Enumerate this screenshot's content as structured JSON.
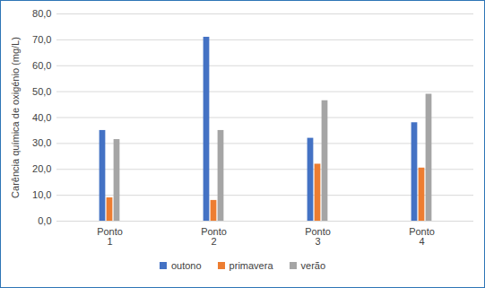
{
  "chart_data": {
    "type": "bar",
    "y_label": "Carência química de oxigénio (mg/L)",
    "categories": [
      "Ponto 1",
      "Ponto 2",
      "Ponto 3",
      "Ponto 4"
    ],
    "series": [
      {
        "name": "outono",
        "color": "#4472c4",
        "values": [
          35,
          71,
          32,
          38
        ]
      },
      {
        "name": "primavera",
        "color": "#ed7d31",
        "values": [
          9,
          8,
          22,
          20.5
        ]
      },
      {
        "name": "verão",
        "color": "#a5a5a5",
        "values": [
          31.5,
          35,
          46.5,
          49
        ]
      }
    ],
    "ylim": [
      0,
      80
    ],
    "yticks": [
      {
        "value": 0,
        "label": "0,0"
      },
      {
        "value": 10,
        "label": "10,0"
      },
      {
        "value": 20,
        "label": "20,0"
      },
      {
        "value": 30,
        "label": "30,0"
      },
      {
        "value": 40,
        "label": "40,0"
      },
      {
        "value": 50,
        "label": "50,0"
      },
      {
        "value": 60,
        "label": "60,0"
      },
      {
        "value": 70,
        "label": "70,0"
      },
      {
        "value": 80,
        "label": "80,0"
      }
    ],
    "grid": true,
    "legend": "bottom"
  }
}
